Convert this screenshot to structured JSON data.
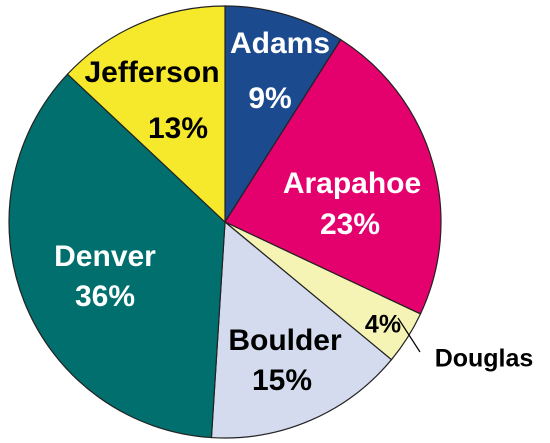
{
  "chart_data": {
    "type": "pie",
    "categories": [
      "Adams",
      "Arapahoe",
      "Douglas",
      "Boulder",
      "Denver",
      "Jefferson"
    ],
    "values": [
      9,
      23,
      4,
      15,
      36,
      13
    ],
    "value_labels": [
      "9%",
      "23%",
      "4%",
      "15%",
      "36%",
      "13%"
    ],
    "colors": [
      "#1b4a8e",
      "#e4006d",
      "#f6f4b4",
      "#d4dbee",
      "#006f6e",
      "#f6e92b"
    ]
  }
}
